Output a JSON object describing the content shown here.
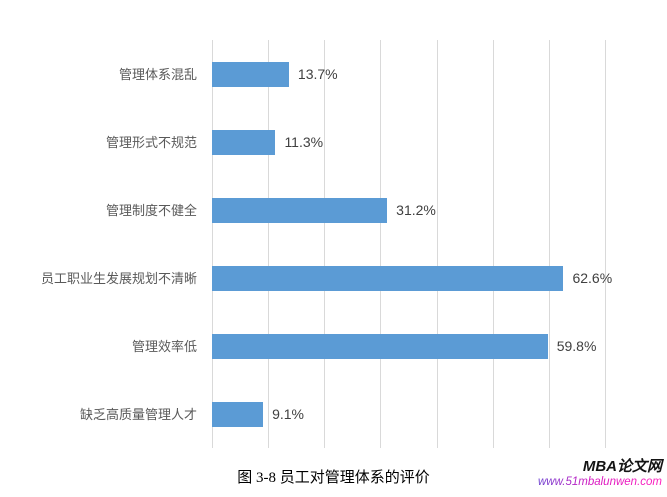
{
  "chart_data": {
    "type": "bar",
    "orientation": "horizontal",
    "title": "",
    "categories": [
      "管理体系混乱",
      "管理形式不规范",
      "管理制度不健全",
      "员工职业生发展规划不清晰",
      "管理效率低",
      "缺乏高质量管理人才"
    ],
    "values": [
      13.7,
      11.3,
      31.2,
      62.6,
      59.8,
      9.1
    ],
    "value_labels": [
      "13.7%",
      "11.3%",
      "31.2%",
      "62.6%",
      "59.8%",
      "9.1%"
    ],
    "xlim": [
      0,
      70
    ],
    "gridline_interval": 10,
    "grid": true,
    "legend": false,
    "bar_color": "#5b9bd5",
    "gridline_color": "#d9d9d9"
  },
  "caption": "图 3-8 员工对管理体系的评价",
  "watermark": {
    "brand": "MBA论文网",
    "url": "www.51mbalunwen.com",
    "brand_color": "#141414",
    "url_color_start": "#6a3fd0",
    "url_color_end": "#ff1fbe"
  }
}
